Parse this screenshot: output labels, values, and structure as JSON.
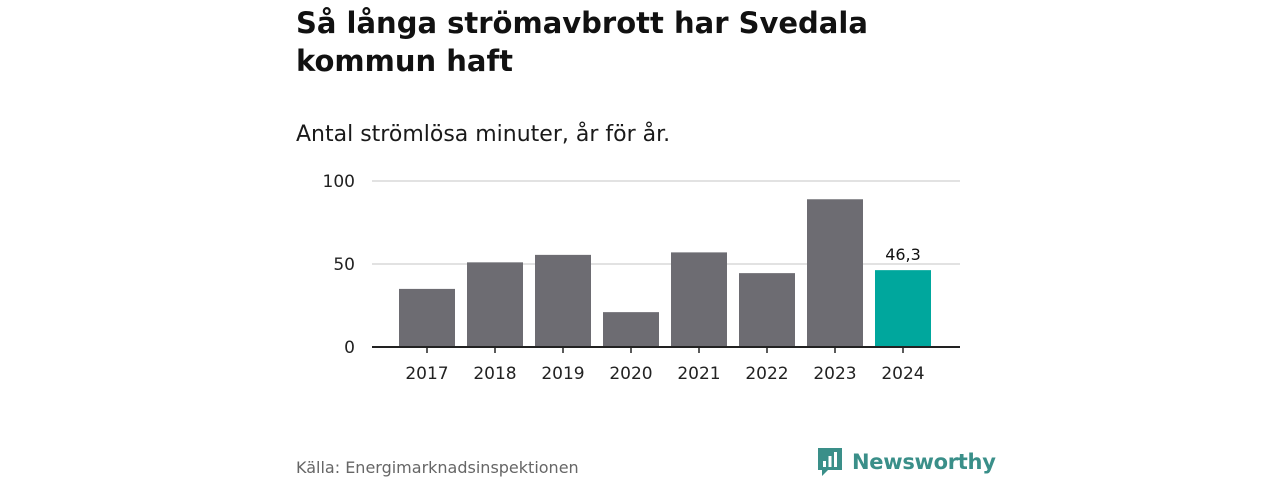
{
  "chart_data": {
    "type": "bar",
    "title": "Så långa strömavbrott har Svedala kommun haft",
    "subtitle": "Antal strömlösa minuter, år för år.",
    "categories": [
      "2017",
      "2018",
      "2019",
      "2020",
      "2021",
      "2022",
      "2023",
      "2024"
    ],
    "values": [
      35,
      51,
      55.5,
      21,
      57,
      44.5,
      89,
      46.3
    ],
    "highlight_index": 7,
    "highlight_label": "46,3",
    "ylim": [
      0,
      100
    ],
    "yticks": [
      0,
      50,
      100
    ],
    "ytick_labels": [
      "0",
      "50",
      "100"
    ],
    "xlabel": "",
    "ylabel": "",
    "grid": true,
    "colors": {
      "bar": "#6d6c72",
      "highlight": "#00a79d",
      "grid": "#d9d9d9",
      "axis": "#222222"
    }
  },
  "footer": {
    "source": "Källa: Energimarknadsinspektionen",
    "brand": "Newsworthy",
    "brand_icon": "newsworthy-logo-icon",
    "brand_color": "#3a8f89"
  }
}
